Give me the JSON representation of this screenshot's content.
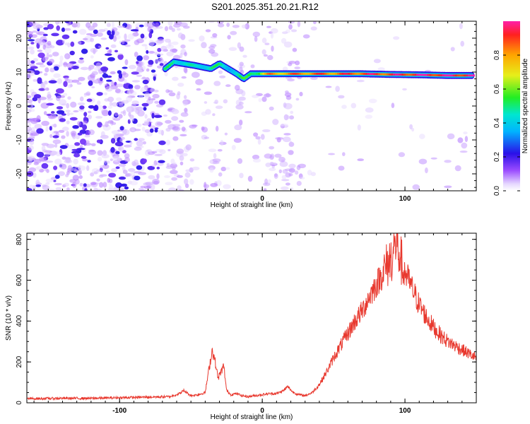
{
  "title": "S201.2025.351.20.21.R12",
  "colors": {
    "snr_line": "#e8382e",
    "axis": "#000000",
    "scatter": "#8a3cf0"
  },
  "colorbar": {
    "label": "Normalized spectral amplitude",
    "ticks": [
      "0.0",
      "0.2",
      "0.4",
      "0.6",
      "0.8"
    ],
    "range": [
      0,
      1
    ],
    "colormap": "rainbow"
  },
  "chart_data": [
    {
      "type": "heatmap",
      "name": "spectrogram",
      "xlabel": "Height of straight line (km)",
      "ylabel": "Frequency (Hz)",
      "xlim": [
        -165,
        150
      ],
      "ylim": [
        -25,
        25
      ],
      "xticks": [
        "-100",
        "0",
        "100"
      ],
      "yticks": [
        "-20",
        "-10",
        "0",
        "10",
        "20"
      ],
      "ridge": {
        "x": [
          -68,
          -62,
          -55,
          -48,
          -42,
          -36,
          -30,
          -24,
          -18,
          -13,
          -8,
          -2,
          5,
          15,
          30,
          50,
          70,
          90,
          110,
          130,
          148
        ],
        "frequency_hz": [
          11,
          13,
          12.5,
          12,
          11.5,
          11,
          12.5,
          11,
          9.5,
          8,
          9.5,
          9.5,
          9.5,
          9.5,
          9.5,
          9.5,
          9.5,
          9.3,
          9.2,
          9,
          9
        ],
        "amplitude": [
          0.45,
          0.5,
          0.45,
          0.4,
          0.45,
          0.5,
          0.45,
          0.4,
          0.45,
          0.5,
          0.55,
          0.6,
          0.8,
          0.8,
          0.85,
          0.85,
          0.9,
          0.9,
          0.95,
          0.95,
          0.95
        ]
      }
    },
    {
      "type": "line",
      "name": "snr",
      "xlabel": "Height of straight line (km)",
      "ylabel": "SNR (10 * v/v)",
      "xlim": [
        -165,
        150
      ],
      "ylim": [
        0,
        830
      ],
      "xticks": [
        "-100",
        "0",
        "100"
      ],
      "yticks": [
        "0",
        "200",
        "400",
        "600",
        "800"
      ],
      "series": [
        {
          "x": [
            -165,
            -140,
            -120,
            -100,
            -80,
            -65,
            -58,
            -55,
            -50,
            -45,
            -40,
            -37,
            -35,
            -33,
            -31,
            -29,
            -27,
            -25,
            -22,
            -18,
            -14,
            -10,
            -5,
            0,
            5,
            10,
            15,
            18,
            21,
            25,
            30,
            35,
            40,
            45,
            50,
            55,
            60,
            65,
            70,
            75,
            80,
            85,
            88,
            91,
            94,
            97,
            100,
            105,
            110,
            115,
            120,
            125,
            130,
            135,
            140,
            145,
            150
          ],
          "y": [
            20,
            22,
            22,
            25,
            28,
            30,
            45,
            60,
            35,
            40,
            50,
            180,
            260,
            200,
            120,
            150,
            180,
            60,
            40,
            45,
            35,
            30,
            35,
            40,
            45,
            45,
            60,
            80,
            55,
            40,
            35,
            50,
            90,
            150,
            220,
            280,
            340,
            400,
            450,
            520,
            580,
            640,
            680,
            720,
            790,
            700,
            640,
            560,
            480,
            420,
            370,
            330,
            300,
            280,
            260,
            240,
            220
          ]
        }
      ]
    }
  ]
}
